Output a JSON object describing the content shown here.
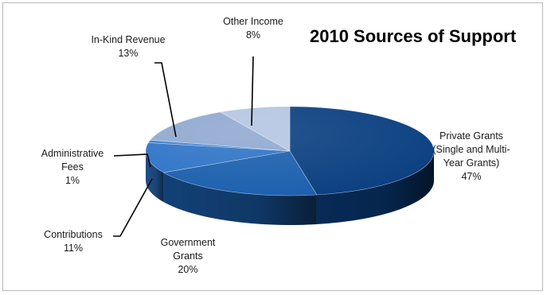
{
  "chart_data": {
    "type": "pie",
    "title": "2010 Sources of Support",
    "slices": [
      {
        "label_lines": [
          "Private Grants",
          "(Single and Multi-",
          "Year Grants)"
        ],
        "pct_label": "47%",
        "value": 47,
        "color": "#0a3f80"
      },
      {
        "label_lines": [
          "Government",
          "Grants"
        ],
        "pct_label": "20%",
        "value": 20,
        "color": "#1b5fad"
      },
      {
        "label_lines": [
          "Contributions"
        ],
        "pct_label": "11%",
        "value": 11,
        "color": "#2e73c6"
      },
      {
        "label_lines": [
          "Administrative",
          "Fees"
        ],
        "pct_label": "1%",
        "value": 1,
        "color": "#3f80cf"
      },
      {
        "label_lines": [
          "In-Kind Revenue"
        ],
        "pct_label": "13%",
        "value": 13,
        "color": "#8fa8d0"
      },
      {
        "label_lines": [
          "Other Income"
        ],
        "pct_label": "8%",
        "value": 8,
        "color": "#b4c5e2"
      }
    ],
    "legend": "none",
    "style": "3d-pie"
  }
}
